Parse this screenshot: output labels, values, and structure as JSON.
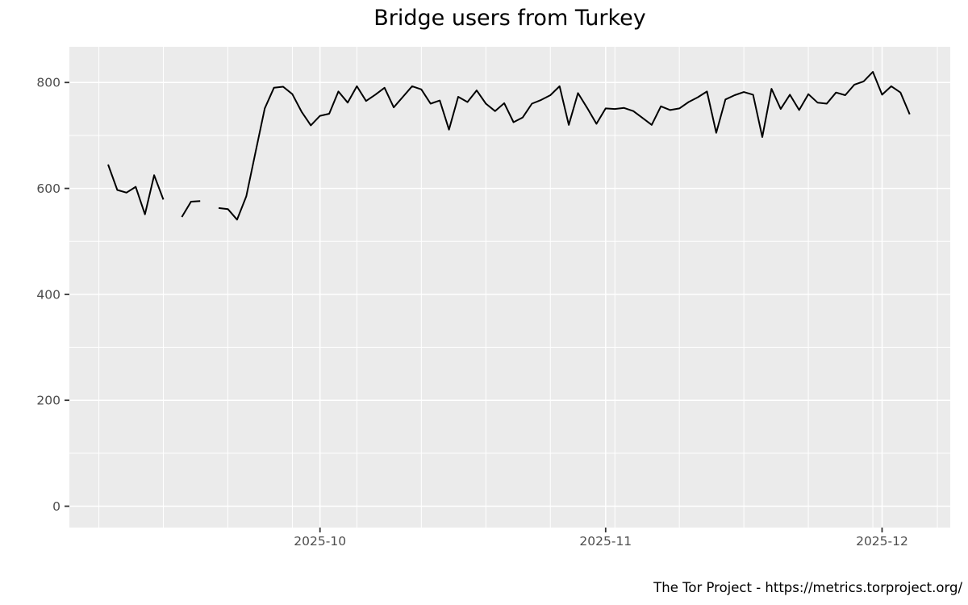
{
  "title": "Bridge users from Turkey",
  "caption": "The Tor Project - https://metrics.torproject.org/",
  "colors": {
    "panel_background": "#EBEBEB",
    "gridline": "#FFFFFF",
    "line": "#000000",
    "axis_text": "#4D4D4D",
    "tick_mark": "#333333",
    "title_text": "#000000",
    "caption_text": "#000000"
  },
  "chart_data": {
    "type": "line",
    "title": "Bridge users from Turkey",
    "xlabel": "",
    "ylabel": "",
    "legend": "none",
    "grid": "white major and minor gridlines on gray panel (ggplot style)",
    "frequency": "daily",
    "start_date": "2025-09-08",
    "end_date": "2025-12-04",
    "gaps": [
      "2025-09-15",
      "2025-09-19"
    ],
    "x_axis": {
      "tick_dates": [
        "2025-10-01",
        "2025-11-01",
        "2025-12-01"
      ],
      "tick_labels": [
        "2025-10",
        "2025-11",
        "2025-12"
      ],
      "minor_gridline_anchor": "2025-09-07",
      "minor_gridline_step_days": 7,
      "domain_days": [
        -4.2,
        91.4
      ]
    },
    "y_axis": {
      "ticks": [
        0,
        200,
        400,
        600,
        800
      ],
      "tick_labels": [
        "0",
        "200",
        "400",
        "600",
        "800"
      ],
      "minor_ticks": [
        100,
        300,
        500,
        700
      ],
      "domain": [
        -40.3,
        867.4
      ]
    },
    "series": [
      {
        "name": "bridge-users",
        "color": "#000000",
        "dates": [
          "2025-09-08",
          "2025-09-09",
          "2025-09-10",
          "2025-09-11",
          "2025-09-12",
          "2025-09-13",
          "2025-09-14",
          "2025-09-15",
          "2025-09-16",
          "2025-09-17",
          "2025-09-18",
          "2025-09-19",
          "2025-09-20",
          "2025-09-21",
          "2025-09-22",
          "2025-09-23",
          "2025-09-24",
          "2025-09-25",
          "2025-09-26",
          "2025-09-27",
          "2025-09-28",
          "2025-09-29",
          "2025-09-30",
          "2025-10-01",
          "2025-10-02",
          "2025-10-03",
          "2025-10-04",
          "2025-10-05",
          "2025-10-06",
          "2025-10-07",
          "2025-10-08",
          "2025-10-09",
          "2025-10-10",
          "2025-10-11",
          "2025-10-12",
          "2025-10-13",
          "2025-10-14",
          "2025-10-15",
          "2025-10-16",
          "2025-10-17",
          "2025-10-18",
          "2025-10-19",
          "2025-10-20",
          "2025-10-21",
          "2025-10-22",
          "2025-10-23",
          "2025-10-24",
          "2025-10-25",
          "2025-10-26",
          "2025-10-27",
          "2025-10-28",
          "2025-10-29",
          "2025-10-30",
          "2025-10-31",
          "2025-11-01",
          "2025-11-02",
          "2025-11-03",
          "2025-11-04",
          "2025-11-05",
          "2025-11-06",
          "2025-11-07",
          "2025-11-08",
          "2025-11-09",
          "2025-11-10",
          "2025-11-11",
          "2025-11-12",
          "2025-11-13",
          "2025-11-14",
          "2025-11-15",
          "2025-11-16",
          "2025-11-17",
          "2025-11-18",
          "2025-11-19",
          "2025-11-20",
          "2025-11-21",
          "2025-11-22",
          "2025-11-23",
          "2025-11-24",
          "2025-11-25",
          "2025-11-26",
          "2025-11-27",
          "2025-11-28",
          "2025-11-29",
          "2025-11-30",
          "2025-12-01",
          "2025-12-02",
          "2025-12-03",
          "2025-12-04"
        ],
        "values": [
          645,
          597,
          592,
          603,
          551,
          625,
          579,
          null,
          546,
          575,
          576,
          null,
          563,
          561,
          541,
          585,
          668,
          751,
          790,
          792,
          778,
          745,
          719,
          737,
          741,
          783,
          762,
          793,
          765,
          777,
          790,
          753,
          773,
          793,
          787,
          760,
          766,
          711,
          773,
          763,
          785,
          760,
          746,
          761,
          725,
          734,
          760,
          767,
          776,
          793,
          720,
          780,
          752,
          722,
          751,
          750,
          752,
          746,
          733,
          720,
          755,
          748,
          751,
          763,
          772,
          783,
          705,
          768,
          776,
          782,
          777,
          697,
          788,
          750,
          777,
          748,
          778,
          762,
          760,
          781,
          776,
          796,
          802,
          820,
          777,
          793,
          781,
          740
        ]
      }
    ]
  }
}
